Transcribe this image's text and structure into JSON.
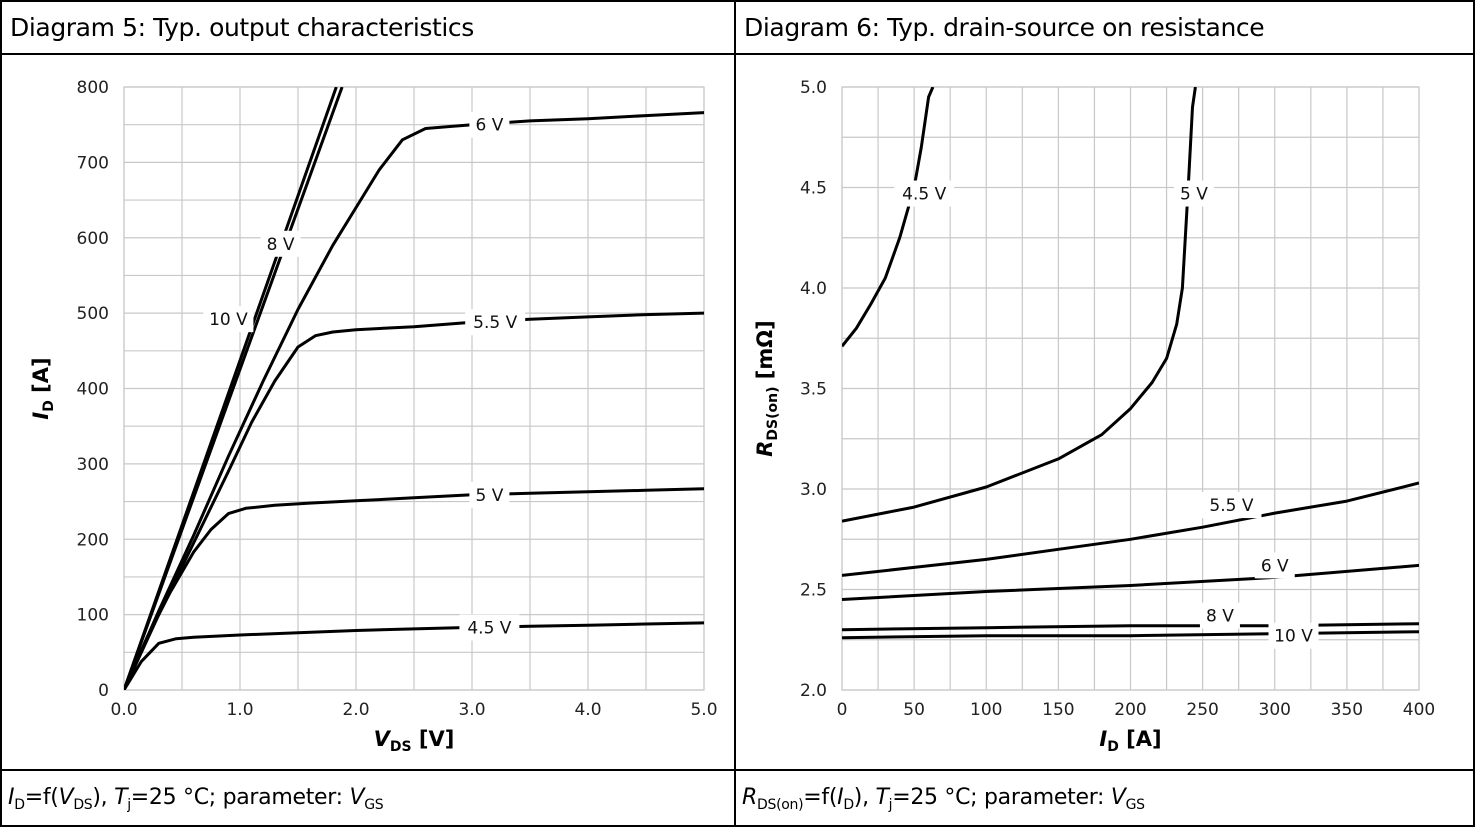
{
  "diagram5": {
    "title": "Diagram 5: Typ. output characteristics",
    "caption": {
      "p1": "I",
      "p1sub": "D",
      "p2": "=f(",
      "p3": "V",
      "p3sub": "DS",
      "p4": "), ",
      "p5": "T",
      "p5sub": "j",
      "p6": "=25 °C; parameter: ",
      "p7": "V",
      "p7sub": "GS"
    }
  },
  "diagram6": {
    "title": "Diagram 6: Typ. drain-source on resistance",
    "caption": {
      "p1": "R",
      "p1sub": "DS(on)",
      "p2": "=f(",
      "p3": "I",
      "p3sub": "D",
      "p4": "), ",
      "p5": "T",
      "p5sub": "j",
      "p6": "=25 °C; parameter: ",
      "p7": "V",
      "p7sub": "GS"
    }
  },
  "chart_data": [
    {
      "type": "line",
      "xlabel": {
        "main": "V",
        "sub": "DS",
        "unit": "[V]"
      },
      "ylabel": {
        "main": "I",
        "sub": "D",
        "unit": "[A]"
      },
      "xlim": [
        0,
        5
      ],
      "ylim": [
        0,
        800
      ],
      "xticks": [
        0,
        1,
        2,
        3,
        4,
        5
      ],
      "xtick_labels": [
        "0.0",
        "1.0",
        "2.0",
        "3.0",
        "4.0",
        "5.0"
      ],
      "yticks": [
        0,
        100,
        200,
        300,
        400,
        500,
        600,
        700,
        800
      ],
      "ytick_labels": [
        "0",
        "100",
        "200",
        "300",
        "400",
        "500",
        "600",
        "700",
        "800"
      ],
      "grid": true,
      "series": [
        {
          "name": "4.5 V",
          "label_at": [
            3.15,
            83
          ],
          "x": [
            0,
            0.15,
            0.3,
            0.45,
            0.6,
            1.0,
            1.5,
            2.0,
            2.5,
            3.0,
            3.5,
            4.0,
            4.5,
            5.0
          ],
          "y": [
            0,
            38,
            62,
            68,
            70,
            73,
            76,
            79,
            81,
            83,
            84.5,
            86,
            87.5,
            89
          ]
        },
        {
          "name": "5 V",
          "label_at": [
            3.15,
            259
          ],
          "x": [
            0,
            0.2,
            0.4,
            0.6,
            0.75,
            0.9,
            1.05,
            1.3,
            1.6,
            2.0,
            2.5,
            3.0,
            3.5,
            4.0,
            4.5,
            5.0
          ],
          "y": [
            0,
            70,
            130,
            183,
            213,
            234,
            241,
            245,
            248,
            251,
            255,
            259,
            261,
            263,
            265,
            267
          ]
        },
        {
          "name": "5.5 V",
          "label_at": [
            3.2,
            488
          ],
          "x": [
            0,
            0.3,
            0.6,
            0.9,
            1.1,
            1.3,
            1.5,
            1.65,
            1.8,
            2.0,
            2.5,
            3.0,
            3.5,
            4.0,
            4.5,
            5.0
          ],
          "y": [
            0,
            100,
            195,
            290,
            355,
            410,
            455,
            470,
            475,
            478,
            482,
            488,
            492,
            495,
            498,
            500
          ]
        },
        {
          "name": "6 V",
          "label_at": [
            3.15,
            750
          ],
          "x": [
            0,
            0.3,
            0.6,
            0.9,
            1.2,
            1.5,
            1.8,
            2.0,
            2.2,
            2.4,
            2.6,
            3.0,
            3.5,
            4.0,
            4.5,
            5.0
          ],
          "y": [
            0,
            105,
            205,
            310,
            410,
            505,
            590,
            640,
            690,
            730,
            745,
            750,
            755,
            758,
            762,
            766
          ]
        },
        {
          "name": "8 V",
          "label_at": [
            1.35,
            592
          ],
          "x": [
            0,
            1.88
          ],
          "y": [
            0,
            800
          ]
        },
        {
          "name": "10 V",
          "label_at": [
            0.9,
            492
          ],
          "x": [
            0,
            1.83
          ],
          "y": [
            0,
            800
          ]
        }
      ]
    },
    {
      "type": "line",
      "xlabel": {
        "main": "I",
        "sub": "D",
        "unit": "[A]"
      },
      "ylabel": {
        "main": "R",
        "sub": "DS(on)",
        "unit": "[mΩ]"
      },
      "xlim": [
        0,
        400
      ],
      "ylim": [
        2.0,
        5.0
      ],
      "xticks": [
        0,
        50,
        100,
        150,
        200,
        250,
        300,
        350,
        400
      ],
      "xtick_labels": [
        "0",
        "50",
        "100",
        "150",
        "200",
        "250",
        "300",
        "350",
        "400"
      ],
      "yticks": [
        2.0,
        2.5,
        3.0,
        3.5,
        4.0,
        4.5,
        5.0
      ],
      "ytick_labels": [
        "2.0",
        "2.5",
        "3.0",
        "3.5",
        "4.0",
        "4.5",
        "5.0"
      ],
      "grid": true,
      "series": [
        {
          "name": "4.5 V",
          "label_at": [
            57,
            4.47
          ],
          "x": [
            0,
            10,
            20,
            30,
            40,
            50,
            55,
            60,
            63
          ],
          "y": [
            3.71,
            3.8,
            3.92,
            4.05,
            4.25,
            4.5,
            4.7,
            4.95,
            5.0
          ]
        },
        {
          "name": "5 V",
          "label_at": [
            244,
            4.47
          ],
          "x": [
            0,
            50,
            100,
            150,
            180,
            200,
            215,
            225,
            232,
            236,
            240,
            243,
            245
          ],
          "y": [
            2.84,
            2.91,
            3.01,
            3.15,
            3.27,
            3.4,
            3.53,
            3.65,
            3.82,
            4.0,
            4.5,
            4.9,
            5.0
          ]
        },
        {
          "name": "5.5 V",
          "label_at": [
            270,
            2.92
          ],
          "x": [
            0,
            50,
            100,
            150,
            200,
            250,
            300,
            350,
            400
          ],
          "y": [
            2.57,
            2.61,
            2.65,
            2.7,
            2.75,
            2.81,
            2.88,
            2.94,
            3.03
          ]
        },
        {
          "name": "6 V",
          "label_at": [
            300,
            2.62
          ],
          "x": [
            0,
            100,
            200,
            300,
            400
          ],
          "y": [
            2.45,
            2.49,
            2.52,
            2.56,
            2.62
          ]
        },
        {
          "name": "8 V",
          "label_at": [
            262,
            2.37
          ],
          "x": [
            0,
            100,
            200,
            300,
            400
          ],
          "y": [
            2.3,
            2.31,
            2.32,
            2.32,
            2.33
          ]
        },
        {
          "name": "10 V",
          "label_at": [
            313,
            2.27
          ],
          "x": [
            0,
            100,
            200,
            300,
            400
          ],
          "y": [
            2.26,
            2.27,
            2.27,
            2.28,
            2.29
          ]
        }
      ]
    }
  ]
}
